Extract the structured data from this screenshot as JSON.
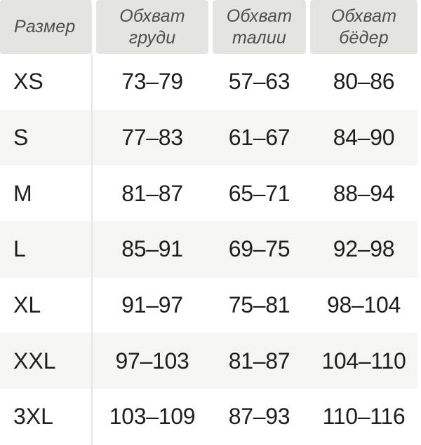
{
  "table": {
    "headers": [
      {
        "label": "Размер"
      },
      {
        "line1": "Обхват",
        "line2": "груди"
      },
      {
        "line1": "Обхват",
        "line2": "талии"
      },
      {
        "line1": "Обхват",
        "line2": "бёдер"
      }
    ],
    "rows": [
      {
        "size": "XS",
        "chest": "73–79",
        "waist": "57–63",
        "hips": "80–86"
      },
      {
        "size": "S",
        "chest": "77–83",
        "waist": "61–67",
        "hips": "84–90"
      },
      {
        "size": "M",
        "chest": "81–87",
        "waist": "65–71",
        "hips": "88–94"
      },
      {
        "size": "L",
        "chest": "85–91",
        "waist": "69–75",
        "hips": "92–98"
      },
      {
        "size": "XL",
        "chest": "91–97",
        "waist": "75–81",
        "hips": "98–104"
      },
      {
        "size": "XXL",
        "chest": "97–103",
        "waist": "81–87",
        "hips": "104–110"
      },
      {
        "size": "3XL",
        "chest": "103–109",
        "waist": "87–93",
        "hips": "110–116"
      }
    ]
  },
  "colors": {
    "header_bg": "#e4e4e2",
    "header_text": "#4f4f4f",
    "zebra_row_bg": "#f5f5f3",
    "body_text": "#1e1e1e",
    "divider": "#e7e6e4",
    "page_bg": "#ffffff"
  },
  "chart_data": {
    "type": "table",
    "columns": [
      "Размер",
      "Обхват груди",
      "Обхват талии",
      "Обхват бёдер"
    ],
    "rows": [
      [
        "XS",
        "73–79",
        "57–63",
        "80–86"
      ],
      [
        "S",
        "77–83",
        "61–67",
        "84–90"
      ],
      [
        "M",
        "81–87",
        "65–71",
        "88–94"
      ],
      [
        "L",
        "85–91",
        "69–75",
        "92–98"
      ],
      [
        "XL",
        "91–97",
        "75–81",
        "98–104"
      ],
      [
        "XXL",
        "97–103",
        "81–87",
        "104–110"
      ],
      [
        "3XL",
        "103–109",
        "87–93",
        "110–116"
      ]
    ],
    "title": "",
    "layout": "header row shaded, zebra striping on rows S/L/XXL, vertical divider after first column"
  }
}
